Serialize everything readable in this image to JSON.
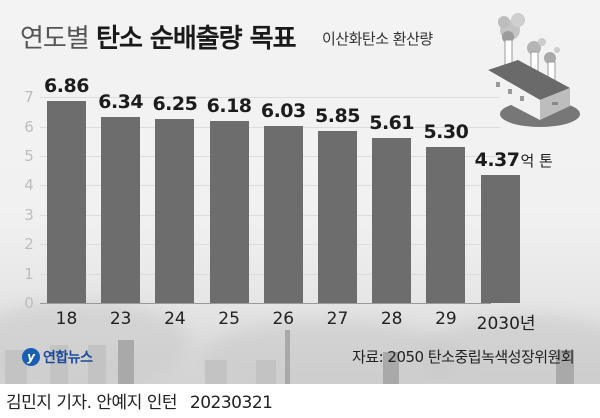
{
  "header": {
    "title_light": "연도별",
    "title_bold": "탄소 순배출량 목표",
    "subtitle": "이산화탄소 환산량"
  },
  "chart_data": {
    "type": "bar",
    "title": "연도별 탄소 순배출량 목표",
    "subtitle": "이산화탄소 환산량",
    "categories": [
      "18",
      "23",
      "24",
      "25",
      "26",
      "27",
      "28",
      "29",
      "2030년"
    ],
    "values": [
      6.86,
      6.34,
      6.25,
      6.18,
      6.03,
      5.85,
      5.61,
      5.3,
      4.37
    ],
    "value_labels": [
      "6.86",
      "6.34",
      "6.25",
      "6.18",
      "6.03",
      "5.85",
      "5.61",
      "5.30",
      "4.37"
    ],
    "unit": "억 톤",
    "xlabel": "",
    "ylabel": "",
    "yticks": [
      "0",
      "1",
      "2",
      "3",
      "4",
      "5",
      "6",
      "7"
    ],
    "ylim": [
      0,
      7
    ],
    "grid": true,
    "bar_color": "#6d6d6d"
  },
  "footer": {
    "source": "자료: 2050 탄소중립녹색성장위원회",
    "logo_text": "연합뉴스",
    "credit": "김민지 기자. 안예지 인턴",
    "date": "20230321"
  },
  "icons": {
    "factory": "factory-icon",
    "logo": "yonhap-logo-icon"
  }
}
